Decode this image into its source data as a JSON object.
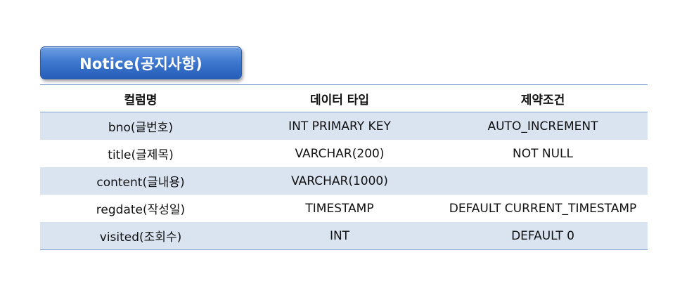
{
  "title": "Notice(공지사항)",
  "table": {
    "headers": [
      "컬럼명",
      "데이터 타입",
      "제약조건"
    ],
    "rows": [
      [
        "bno(글번호)",
        "INT PRIMARY KEY",
        "AUTO_INCREMENT"
      ],
      [
        "title(글제목)",
        "VARCHAR(200)",
        "NOT NULL"
      ],
      [
        "content(글내용)",
        "VARCHAR(1000)",
        ""
      ],
      [
        "regdate(작성일)",
        "TIMESTAMP",
        "DEFAULT CURRENT_TIMESTAMP"
      ],
      [
        "visited(조회수)",
        "INT",
        "DEFAULT 0"
      ]
    ]
  },
  "colors": {
    "title_gradient_top": "#6f9fe3",
    "title_gradient_bottom": "#255db8",
    "row_shade": "#dae4f1",
    "rule": "#7fa3d3"
  }
}
